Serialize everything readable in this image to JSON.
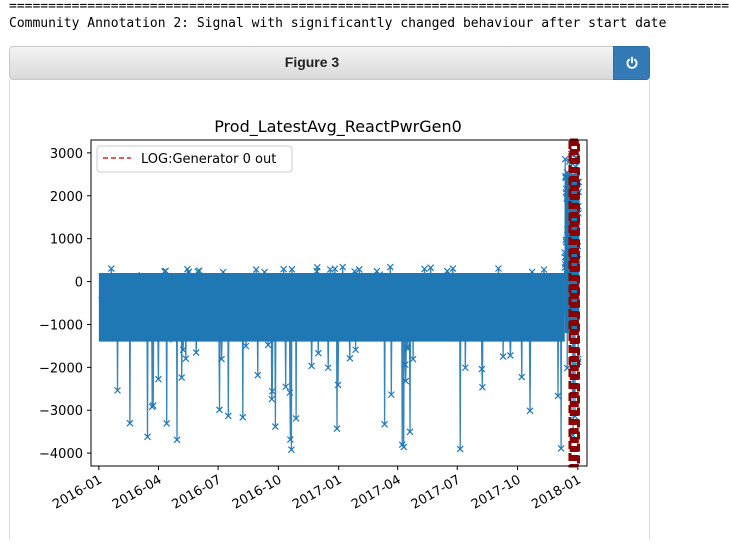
{
  "output": {
    "separator": "==========================================================================================================================",
    "annotation": "Community Annotation 2: Signal with significantly changed behaviour after start date"
  },
  "figure": {
    "title": "Figure 3",
    "power_icon": "power-icon"
  },
  "chart_data": {
    "type": "scatter",
    "title": "Prod_LatestAvg_ReactPwrGen0",
    "xlabel": "",
    "ylabel": "",
    "x_ticks": [
      "2016-01",
      "2016-04",
      "2016-07",
      "2016-10",
      "2017-01",
      "2017-04",
      "2017-07",
      "2017-10",
      "2018-01"
    ],
    "y_ticks": [
      3000,
      2000,
      1000,
      0,
      -1000,
      -2000,
      -3000,
      -4000
    ],
    "ylim": [
      -4300,
      3300
    ],
    "xlim": [
      "2015-12-20",
      "2018-01-15"
    ],
    "marker": "x",
    "line_color": "#1f77b4",
    "series": [
      {
        "style": "markers with connecting line",
        "phases": [
          {
            "x_start": "2016-01-01",
            "x_end": "2017-12-12",
            "typical_range": [
              -1400,
              200
            ],
            "max": 350,
            "min": -3950
          },
          {
            "x_start": "2017-12-12",
            "x_end": "2018-01-03",
            "typical_range": [
              -1200,
              2500
            ],
            "max": 3050,
            "min": -3700
          }
        ]
      }
    ],
    "event_span": {
      "x_start": "2017-12-20",
      "x_end": "2018-01-02",
      "color": "#8b0000",
      "legend": "LOG:Generator 0 out"
    },
    "legend": {
      "position": "top-left",
      "entries": [
        "LOG:Generator 0 out"
      ],
      "line_style": "dashed",
      "color": "#d62728"
    },
    "grid": false
  }
}
